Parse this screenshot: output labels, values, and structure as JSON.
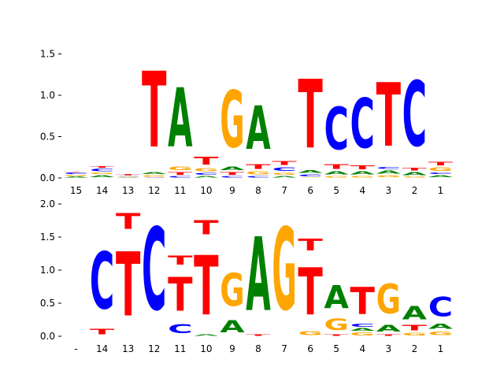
{
  "colors": {
    "A": "#008000",
    "C": "#0000ff",
    "G": "#ffa500",
    "T": "#ff0000"
  },
  "chart_data": [
    {
      "type": "sequence-logo",
      "title": "",
      "xlabel": "",
      "ylabel": "",
      "ylim": [
        0,
        1.6
      ],
      "yticks": [
        "0.0",
        "0.5",
        "1.0",
        "1.5"
      ],
      "ytick_values": [
        0,
        0.5,
        1.0,
        1.5
      ],
      "positions": [
        "15",
        "14",
        "13",
        "12",
        "11",
        "10",
        "9",
        "8",
        "7",
        "6",
        "5",
        "4",
        "3",
        "2",
        "1"
      ],
      "stacks": [
        [
          [
            "A",
            0.02
          ],
          [
            "G",
            0.02
          ],
          [
            "C",
            0.03
          ],
          [
            "T",
            0.01
          ]
        ],
        [
          [
            "A",
            0.04
          ],
          [
            "G",
            0.03
          ],
          [
            "C",
            0.05
          ],
          [
            "T",
            0.03
          ]
        ],
        [
          [
            "A",
            0.01
          ],
          [
            "G",
            0.01
          ],
          [
            "C",
            0.01
          ],
          [
            "T",
            0.02
          ]
        ],
        [
          [
            "C",
            0.01
          ],
          [
            "G",
            0.03
          ],
          [
            "A",
            0.04
          ],
          [
            "T",
            1.47
          ]
        ],
        [
          [
            "C",
            0.03
          ],
          [
            "T",
            0.05
          ],
          [
            "G",
            0.07
          ],
          [
            "A",
            1.14
          ]
        ],
        [
          [
            "A",
            0.03
          ],
          [
            "C",
            0.04
          ],
          [
            "G",
            0.06
          ],
          [
            "T",
            0.15
          ]
        ],
        [
          [
            "C",
            0.03
          ],
          [
            "T",
            0.05
          ],
          [
            "A",
            0.07
          ],
          [
            "G",
            1.1
          ]
        ],
        [
          [
            "C",
            0.03
          ],
          [
            "G",
            0.06
          ],
          [
            "T",
            0.09
          ],
          [
            "A",
            0.84
          ]
        ],
        [
          [
            "A",
            0.03
          ],
          [
            "G",
            0.04
          ],
          [
            "C",
            0.07
          ],
          [
            "T",
            0.08
          ]
        ],
        [
          [
            "G",
            0.01
          ],
          [
            "C",
            0.04
          ],
          [
            "A",
            0.05
          ],
          [
            "T",
            1.33
          ]
        ],
        [
          [
            "G",
            0.03
          ],
          [
            "A",
            0.06
          ],
          [
            "T",
            0.09
          ],
          [
            "C",
            0.82
          ]
        ],
        [
          [
            "G",
            0.03
          ],
          [
            "A",
            0.06
          ],
          [
            "T",
            0.08
          ],
          [
            "C",
            0.96
          ]
        ],
        [
          [
            "G",
            0.04
          ],
          [
            "A",
            0.06
          ],
          [
            "C",
            0.04
          ],
          [
            "T",
            1.23
          ]
        ],
        [
          [
            "G",
            0.02
          ],
          [
            "A",
            0.06
          ],
          [
            "T",
            0.05
          ],
          [
            "C",
            1.26
          ]
        ],
        [
          [
            "A",
            0.04
          ],
          [
            "C",
            0.03
          ],
          [
            "G",
            0.07
          ],
          [
            "T",
            0.07
          ]
        ]
      ]
    },
    {
      "type": "sequence-logo",
      "title": "",
      "xlabel": "",
      "ylabel": "",
      "ylim": [
        0,
        2.0
      ],
      "yticks": [
        "0.0",
        "0.5",
        "1.0",
        "1.5",
        "2.0"
      ],
      "ytick_values": [
        0,
        0.5,
        1.0,
        1.5,
        2.0
      ],
      "positions": [
        "-",
        "14",
        "13",
        "12",
        "11",
        "10",
        "9",
        "8",
        "7",
        "6",
        "5",
        "4",
        "3",
        "2",
        "1"
      ],
      "stacks": [
        [],
        [
          [
            "T",
            0.14
          ],
          [
            "C",
            1.38
          ]
        ],
        [
          [
            "T",
            1.55
          ],
          [
            "T",
            0.38
          ]
        ],
        [
          [
            "C",
            2.0
          ]
        ],
        [
          [
            "C",
            0.22
          ],
          [
            "T",
            0.82
          ],
          [
            "T",
            0.22
          ]
        ],
        [
          [
            "A",
            0.03
          ],
          [
            "T",
            1.44
          ],
          [
            "T",
            0.35
          ]
        ],
        [
          [
            "A",
            0.3
          ],
          [
            "G",
            0.8
          ]
        ],
        [
          [
            "T",
            0.03
          ],
          [
            "A",
            1.79
          ]
        ],
        [
          [
            "G",
            2.0
          ]
        ],
        [
          [
            "G",
            0.1
          ],
          [
            "T",
            1.14
          ],
          [
            "T",
            0.28
          ]
        ],
        [
          [
            "T",
            0.04
          ],
          [
            "G",
            0.27
          ],
          [
            "A",
            0.56
          ]
        ],
        [
          [
            "G",
            0.07
          ],
          [
            "A",
            0.06
          ],
          [
            "C",
            0.07
          ],
          [
            "T",
            0.66
          ]
        ],
        [
          [
            "T",
            0.04
          ],
          [
            "A",
            0.16
          ],
          [
            "G",
            0.72
          ]
        ],
        [
          [
            "G",
            0.06
          ],
          [
            "T",
            0.13
          ],
          [
            "A",
            0.32
          ]
        ],
        [
          [
            "G",
            0.09
          ],
          [
            "A",
            0.12
          ],
          [
            "C",
            0.47
          ]
        ]
      ]
    }
  ]
}
